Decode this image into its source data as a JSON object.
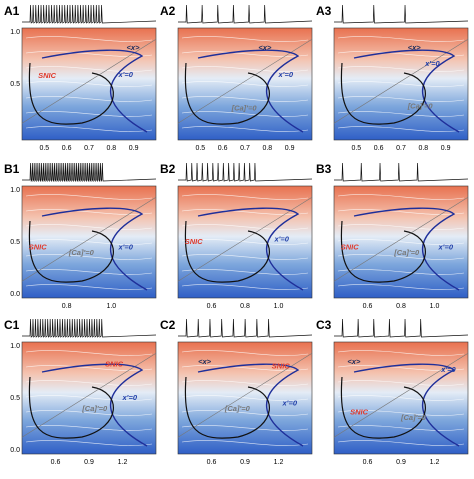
{
  "panels": [
    {
      "label": "A1",
      "yticks": [
        "1.0",
        "0.5"
      ],
      "xticks": [
        "0.5",
        "0.6",
        "0.7",
        "0.8",
        "0.9"
      ],
      "annotations": [
        "<x>",
        "x'=0",
        "SNIC"
      ]
    },
    {
      "label": "A2",
      "yticks": [],
      "xticks": [
        "0.5",
        "0.6",
        "0.7",
        "0.8",
        "0.9"
      ],
      "annotations": [
        "<x>",
        "[Ca]'=0",
        "x'=0"
      ]
    },
    {
      "label": "A3",
      "yticks": [],
      "xticks": [
        "0.5",
        "0.6",
        "0.7",
        "0.8",
        "0.9"
      ],
      "annotations": [
        "<x>",
        "x'=0",
        "[Ca]'=0"
      ]
    },
    {
      "label": "B1",
      "yticks": [
        "1.0",
        "0.5",
        "0.0"
      ],
      "xticks": [
        "0.8",
        "1.0"
      ],
      "annotations": [
        "SNIC",
        "[Ca]'=0",
        "x'=0"
      ]
    },
    {
      "label": "B2",
      "yticks": [],
      "xticks": [
        "0.6",
        "0.8",
        "1.0"
      ],
      "annotations": [
        "SNIC",
        "x'=0"
      ]
    },
    {
      "label": "B3",
      "yticks": [],
      "xticks": [
        "0.6",
        "0.8",
        "1.0"
      ],
      "annotations": [
        "SNIC",
        "[Ca]'=0",
        "x'=0"
      ]
    },
    {
      "label": "C1",
      "yticks": [
        "1.0",
        "0.5",
        "0.0"
      ],
      "xticks": [
        "0.6",
        "0.9",
        "1.2"
      ],
      "annotations": [
        "SNIC",
        "[Ca]'=0",
        "x'=0"
      ]
    },
    {
      "label": "C2",
      "yticks": [],
      "xticks": [
        "0.6",
        "0.9",
        "1.2"
      ],
      "annotations": [
        "<x>",
        "SNIC",
        "[Ca]'=0",
        "x'=0"
      ]
    },
    {
      "label": "C3",
      "yticks": [],
      "xticks": [
        "0.6",
        "0.9",
        "1.2"
      ],
      "annotations": [
        "<x>",
        "x'=0",
        "SNIC",
        "[Ca]'=0"
      ]
    }
  ]
}
